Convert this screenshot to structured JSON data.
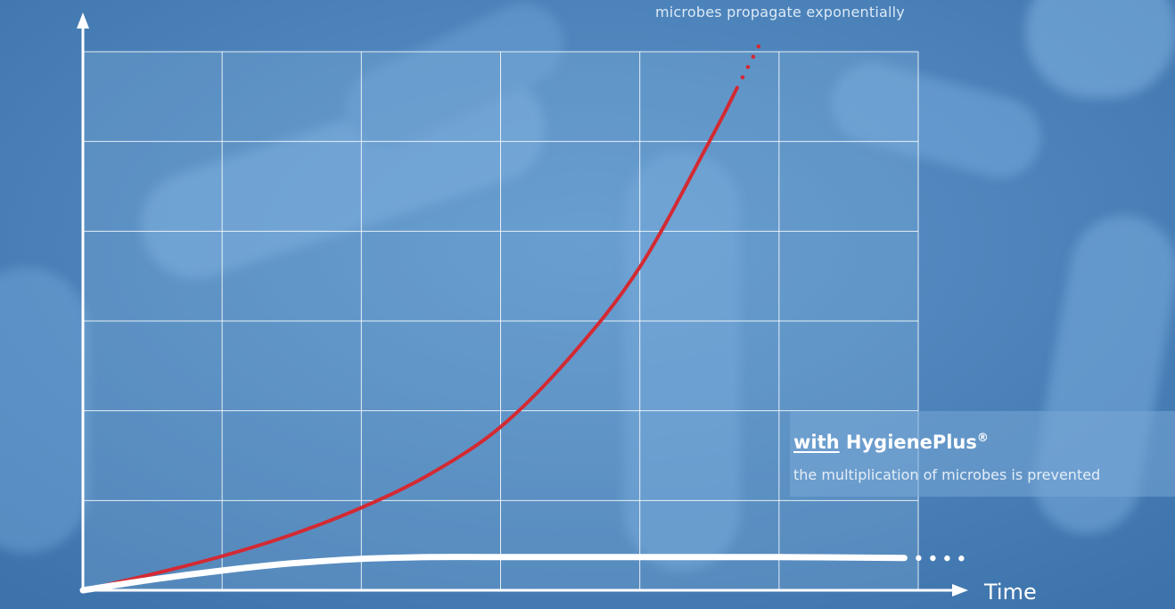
{
  "chart_data": {
    "type": "line",
    "xlabel": "Time",
    "ylabel": "",
    "grid": true,
    "annotations": {
      "top": "microbes propagate exponentially",
      "legend_title_underlined": "with",
      "legend_title_rest": "HygienePlus",
      "legend_title_mark": "®",
      "legend_subtitle": "the multiplication of microbes is prevented"
    },
    "series": [
      {
        "color": "#d32a33",
        "continues": true,
        "points": [
          [
            0,
            0
          ],
          [
            0.5,
            0.18
          ],
          [
            1,
            0.38
          ],
          [
            1.5,
            0.62
          ],
          [
            2,
            0.92
          ],
          [
            2.5,
            1.3
          ],
          [
            3,
            1.82
          ],
          [
            3.5,
            2.6
          ],
          [
            4,
            3.6
          ],
          [
            4.5,
            5.0
          ],
          [
            4.7,
            5.6
          ]
        ]
      },
      {
        "color": "#ffffff",
        "continues": true,
        "points": [
          [
            0,
            0
          ],
          [
            0.5,
            0.12
          ],
          [
            1,
            0.22
          ],
          [
            1.5,
            0.3
          ],
          [
            2,
            0.35
          ],
          [
            2.5,
            0.37
          ],
          [
            3,
            0.37
          ],
          [
            4,
            0.37
          ],
          [
            5,
            0.37
          ],
          [
            5.9,
            0.36
          ]
        ]
      }
    ],
    "xlim": [
      0,
      6
    ],
    "ylim": [
      0,
      6
    ]
  }
}
